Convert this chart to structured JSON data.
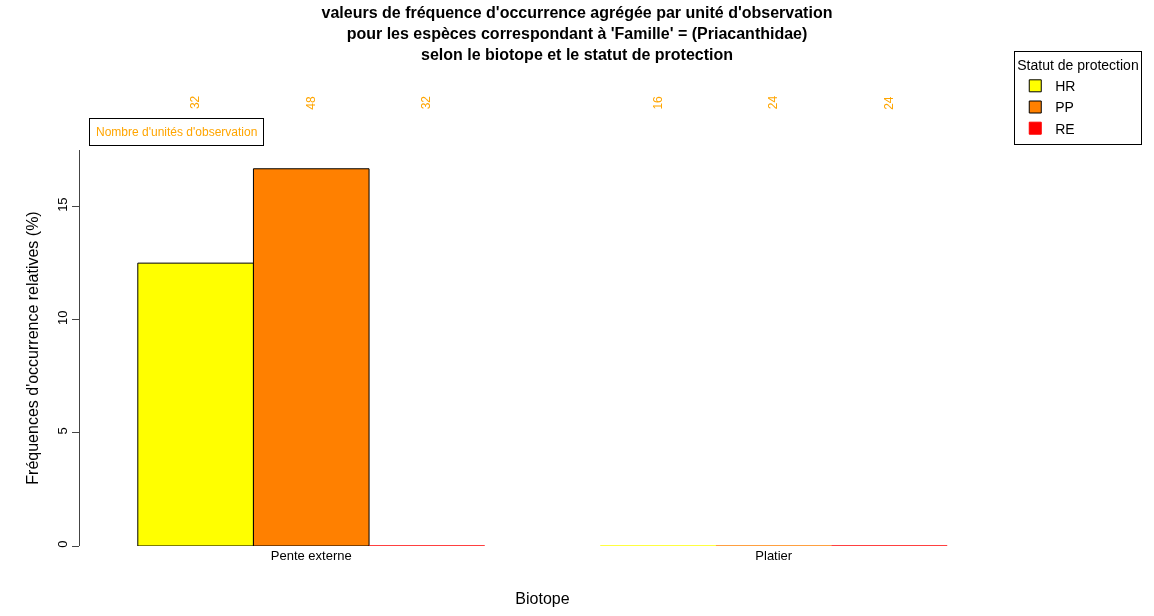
{
  "chart_data": {
    "type": "bar",
    "title": "valeurs de fréquence d'occurrence agrégée par unité d'observation\npour les espèces correspondant à 'Famille' = (Priacanthidae)\nselon le biotope et le statut de protection",
    "xlabel": "Biotope",
    "ylabel": "Fréquences d'occurrence relatives (%)",
    "legend_title": "Statut de protection",
    "categories": [
      "Pente externe",
      "Platier"
    ],
    "series": [
      {
        "name": "HR",
        "color": "#ffff00",
        "values": [
          12.5,
          0
        ]
      },
      {
        "name": "PP",
        "color": "#ff8000",
        "values": [
          16.67,
          0
        ]
      },
      {
        "name": "RE",
        "color": "#ff0000",
        "values": [
          0,
          0
        ]
      }
    ],
    "ylim": [
      0,
      17.5
    ],
    "yticks": [
      0,
      5,
      10,
      15
    ],
    "grid": false,
    "legend": "top right",
    "annotations": [
      "Nombre d'unités d'observation",
      "32",
      "48",
      "32",
      "16",
      "24",
      "24"
    ]
  }
}
